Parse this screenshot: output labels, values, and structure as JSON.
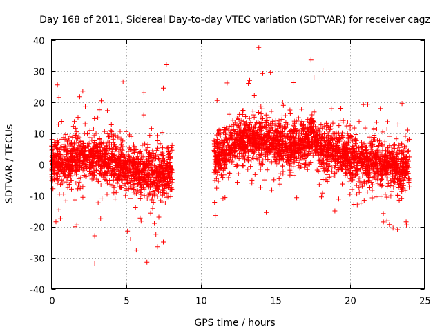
{
  "chart_data": {
    "type": "scatter",
    "title": "Day 168 of 2011, Sidereal Day-to-day VTEC variation (SDTVAR) for receiver cagz",
    "xlabel": "GPS time / hours",
    "ylabel": "SDTVAR / TECUs",
    "xlim": [
      0,
      25
    ],
    "ylim": [
      -40,
      40
    ],
    "xticks": [
      0,
      5,
      10,
      15,
      20,
      25
    ],
    "yticks": [
      -40,
      -30,
      -20,
      -10,
      0,
      10,
      20,
      30,
      40
    ],
    "xtick_labels": [
      "0",
      "5",
      "10",
      "15",
      "20",
      "25"
    ],
    "ytick_labels": [
      "-40",
      "-30",
      "-20",
      "-10",
      "0",
      "10",
      "20",
      "30",
      "40"
    ],
    "grid": true,
    "marker": "+",
    "color": "#ff0000",
    "series": [
      {
        "name": "SDTVAR",
        "segments": [
          {
            "x_start": 0.0,
            "x_end": 8.1,
            "trend": [
              [
                0.0,
                0
              ],
              [
                1.0,
                1
              ],
              [
                2.0,
                2.5
              ],
              [
                3.0,
                2
              ],
              [
                4.0,
                0.5
              ],
              [
                5.0,
                -1
              ],
              [
                6.0,
                -2
              ],
              [
                7.0,
                -3
              ],
              [
                8.1,
                -2
              ]
            ],
            "spread": 5
          },
          {
            "x_start": 10.9,
            "x_end": 24.0,
            "trend": [
              [
                10.9,
                2
              ],
              [
                12.0,
                6
              ],
              [
                13.0,
                8
              ],
              [
                14.0,
                8.5
              ],
              [
                15.0,
                7
              ],
              [
                16.0,
                5.5
              ],
              [
                17.0,
                7
              ],
              [
                17.5,
                9
              ],
              [
                18.0,
                5
              ],
              [
                19.0,
                4
              ],
              [
                20.0,
                2.5
              ],
              [
                21.0,
                1
              ],
              [
                22.0,
                0.5
              ],
              [
                23.0,
                0
              ],
              [
                23.5,
                -1
              ],
              [
                24.0,
                0
              ]
            ],
            "spread": 5
          }
        ],
        "outliers": [
          [
            0.4,
            25.5
          ],
          [
            0.5,
            21.5
          ],
          [
            0.3,
            -18.5
          ],
          [
            0.6,
            -17.5
          ],
          [
            2.1,
            23.5
          ],
          [
            1.7,
            -19.5
          ],
          [
            2.9,
            -23
          ],
          [
            2.9,
            -32
          ],
          [
            3.2,
            17.5
          ],
          [
            4.8,
            26.5
          ],
          [
            5.1,
            -21.5
          ],
          [
            5.3,
            -24
          ],
          [
            6.2,
            23
          ],
          [
            6.4,
            -31.5
          ],
          [
            7.0,
            -22.5
          ],
          [
            7.1,
            -26.5
          ],
          [
            7.5,
            -25
          ],
          [
            7.5,
            24.5
          ],
          [
            7.7,
            32
          ],
          [
            7.2,
            -17
          ],
          [
            6.9,
            -19
          ],
          [
            11.1,
            20.5
          ],
          [
            11.5,
            -11
          ],
          [
            13.2,
            26
          ],
          [
            13.6,
            22
          ],
          [
            13.9,
            37.5
          ],
          [
            14.4,
            -15.5
          ],
          [
            15.5,
            20
          ],
          [
            17.4,
            33.5
          ],
          [
            17.6,
            28
          ],
          [
            18.2,
            30
          ],
          [
            18.1,
            -10.5
          ],
          [
            19.0,
            -15
          ],
          [
            19.4,
            18
          ],
          [
            22.9,
            -20.5
          ],
          [
            23.2,
            -21
          ],
          [
            23.5,
            19.5
          ],
          [
            23.8,
            -19.5
          ],
          [
            20.5,
            -13
          ]
        ]
      }
    ]
  }
}
